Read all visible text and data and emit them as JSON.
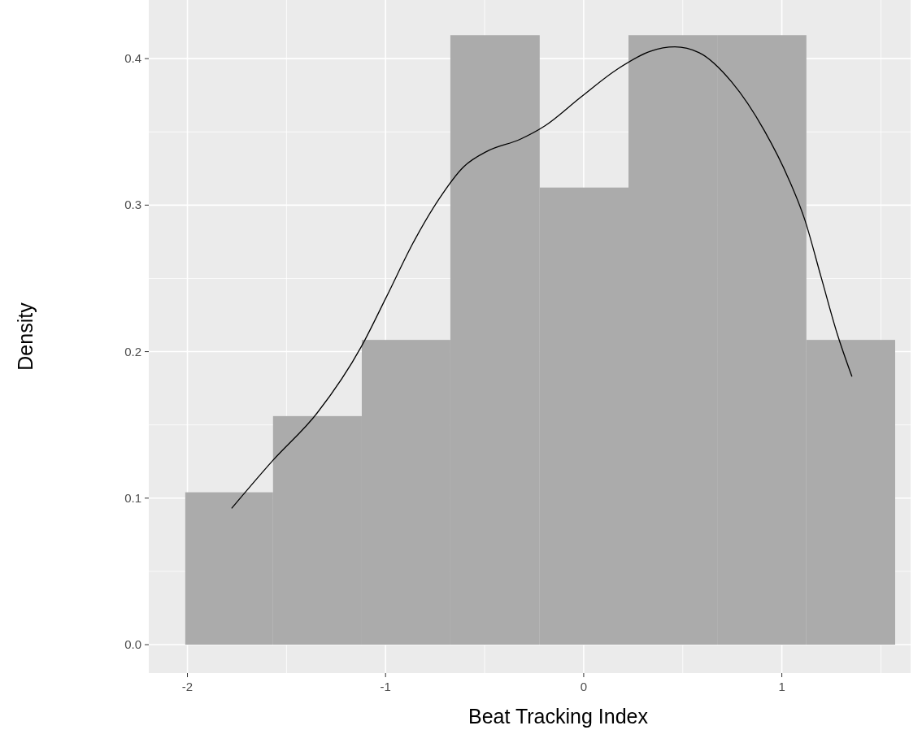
{
  "chart_data": {
    "type": "histogram",
    "xlabel": "Beat Tracking Index",
    "ylabel": "Density",
    "xlim": [
      -2.195,
      1.65
    ],
    "ylim": [
      -0.0194,
      0.44
    ],
    "xticks": [
      -2,
      -1,
      0,
      1
    ],
    "yticks": [
      {
        "value": 0,
        "label": "0.0"
      },
      0.1,
      0.2,
      0.3,
      0.4
    ],
    "grid": true,
    "series": [
      {
        "color": "#ababab",
        "bins": [
          -2.011,
          -1.568,
          -1.12,
          -0.673,
          -0.222,
          0.226,
          0.677,
          1.124,
          1.572
        ],
        "values": [
          0.104,
          0.156,
          0.208,
          0.416,
          0.312,
          0.416,
          0.416,
          0.208
        ]
      },
      {
        "type": "line",
        "color": "#000000",
        "x": [
          -1.777,
          -1.567,
          -1.346,
          -1.12,
          -0.997,
          -0.854,
          -0.731,
          -0.607,
          -0.484,
          -0.32,
          -0.197,
          -0.012,
          0.172,
          0.336,
          0.46,
          0.583,
          0.747,
          0.911,
          1.034,
          1.116,
          1.198,
          1.28,
          1.354
        ],
        "values": [
          0.093,
          0.126,
          0.158,
          0.204,
          0.237,
          0.276,
          0.304,
          0.326,
          0.337,
          0.345,
          0.354,
          0.374,
          0.393,
          0.405,
          0.408,
          0.404,
          0.384,
          0.351,
          0.318,
          0.29,
          0.251,
          0.212,
          0.183
        ]
      }
    ]
  }
}
